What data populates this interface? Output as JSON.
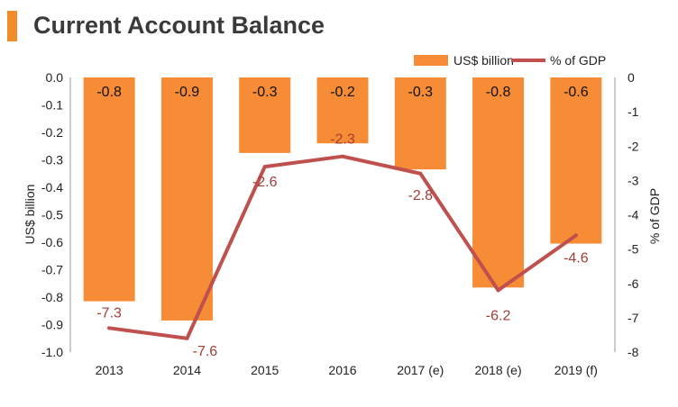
{
  "title": "Current Account Balance",
  "colors": {
    "bar": "#f68c35",
    "line": "#c0504d",
    "line_label": "#a33d36",
    "accent": "#f28c28",
    "axis": "#999999"
  },
  "chart_data": {
    "type": "bar",
    "categories": [
      "2013",
      "2014",
      "2015",
      "2016",
      "2017 (e)",
      "2018 (e)",
      "2019 (f)"
    ],
    "series": [
      {
        "name": "US$ billion",
        "type": "bar",
        "axis": "left",
        "values": [
          -0.8,
          -0.9,
          -0.3,
          -0.2,
          -0.3,
          -0.8,
          -0.6
        ],
        "labels": [
          "-0.8",
          "-0.9",
          "-0.3",
          "-0.2",
          "-0.3",
          "-0.8",
          "-0.6"
        ],
        "plotted": [
          -0.815,
          -0.885,
          -0.275,
          -0.24,
          -0.335,
          -0.765,
          -0.605
        ]
      },
      {
        "name": "% of GDP",
        "type": "line",
        "axis": "right",
        "values": [
          -7.3,
          -7.6,
          -2.6,
          -2.3,
          -2.8,
          -6.2,
          -4.6
        ],
        "labels": [
          "-7.3",
          "-7.6",
          "-2.6",
          "-2.3",
          "-2.8",
          "-6.2",
          "-4.6"
        ]
      }
    ],
    "ylabel": "US$ billion",
    "y2label": "% of GDP",
    "ylim": [
      -1.0,
      0.0
    ],
    "y2lim": [
      -8,
      0
    ],
    "yticks": [
      "0.0",
      "-0.1",
      "-0.2",
      "-0.3",
      "-0.4",
      "-0.5",
      "-0.6",
      "-0.7",
      "-0.8",
      "-0.9",
      "-1.0"
    ],
    "y2ticks": [
      "0",
      "-1",
      "-2",
      "-3",
      "-4",
      "-5",
      "-6",
      "-7",
      "-8"
    ],
    "grid": false,
    "legend": "top-right"
  }
}
